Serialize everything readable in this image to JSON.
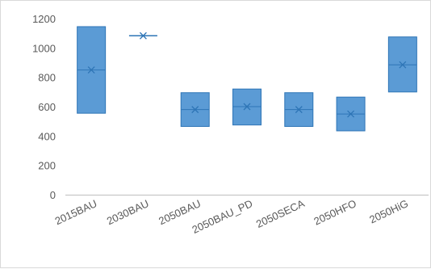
{
  "chart_data": {
    "type": "box",
    "categories": [
      "2015BAU",
      "2030BAU",
      "2050BAU",
      "2050BAU_PD",
      "2050SECA",
      "2050HFO",
      "2050HiG"
    ],
    "boxes": [
      {
        "low": 555,
        "high": 1145,
        "mean": 850
      },
      {
        "low": 1083,
        "high": 1083,
        "mean": 1083
      },
      {
        "low": 465,
        "high": 695,
        "mean": 580
      },
      {
        "low": 475,
        "high": 720,
        "mean": 600
      },
      {
        "low": 465,
        "high": 695,
        "mean": 580
      },
      {
        "low": 435,
        "high": 665,
        "mean": 550
      },
      {
        "low": 700,
        "high": 1075,
        "mean": 885
      }
    ],
    "ylim": [
      0,
      1200
    ],
    "yticks": [
      "0",
      "200",
      "400",
      "600",
      "800",
      "1000",
      "1200"
    ],
    "grid": false,
    "colors": {
      "box_fill": "#5b9bd5",
      "box_stroke": "#2e75b6",
      "marker": "#2e75b6",
      "axis": "#bfbfbf",
      "text": "#595959"
    }
  }
}
